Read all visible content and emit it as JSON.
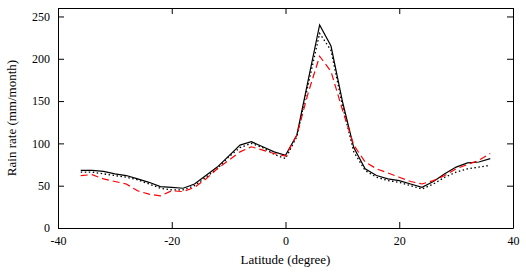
{
  "chart_data": {
    "type": "line",
    "x_label": "Latitude (degree)",
    "y_label": "Rain rate (mm/month)",
    "x": [
      -36,
      -34,
      -32,
      -30,
      -28,
      -26,
      -24,
      -22,
      -20,
      -18,
      -16,
      -14,
      -12,
      -10,
      -8,
      -6,
      -4,
      -2,
      0,
      2,
      4,
      6,
      8,
      10,
      12,
      14,
      16,
      18,
      20,
      22,
      24,
      26,
      28,
      30,
      32,
      34,
      36
    ],
    "series": [
      {
        "color": "#000000",
        "line_style": "solid",
        "values": [
          68,
          68,
          67,
          64,
          62,
          58,
          54,
          49,
          48,
          47,
          52,
          62,
          72,
          85,
          98,
          102,
          96,
          90,
          86,
          110,
          175,
          240,
          215,
          150,
          95,
          70,
          62,
          58,
          56,
          52,
          48,
          55,
          64,
          72,
          77,
          78,
          82
        ]
      },
      {
        "color": "#000000",
        "line_style": "dotted",
        "values": [
          66,
          66,
          64,
          62,
          60,
          57,
          52,
          47,
          45,
          45,
          50,
          60,
          70,
          84,
          95,
          100,
          95,
          87,
          82,
          108,
          170,
          230,
          210,
          145,
          90,
          68,
          60,
          56,
          54,
          50,
          46,
          52,
          60,
          66,
          70,
          72,
          74
        ]
      },
      {
        "color": "#ff0000",
        "line_style": "dashed",
        "values": [
          62,
          63,
          58,
          55,
          52,
          44,
          40,
          38,
          44,
          43,
          48,
          58,
          70,
          80,
          90,
          96,
          92,
          88,
          85,
          110,
          160,
          203,
          185,
          140,
          98,
          78,
          70,
          65,
          60,
          55,
          52,
          56,
          62,
          70,
          75,
          80,
          88
        ]
      }
    ],
    "xlim": [
      -40,
      40
    ],
    "xticks": [
      -40,
      -20,
      0,
      20,
      40
    ],
    "ylim": [
      0,
      260
    ],
    "yticks": [
      0,
      50,
      100,
      150,
      200,
      250
    ],
    "grid": false
  }
}
